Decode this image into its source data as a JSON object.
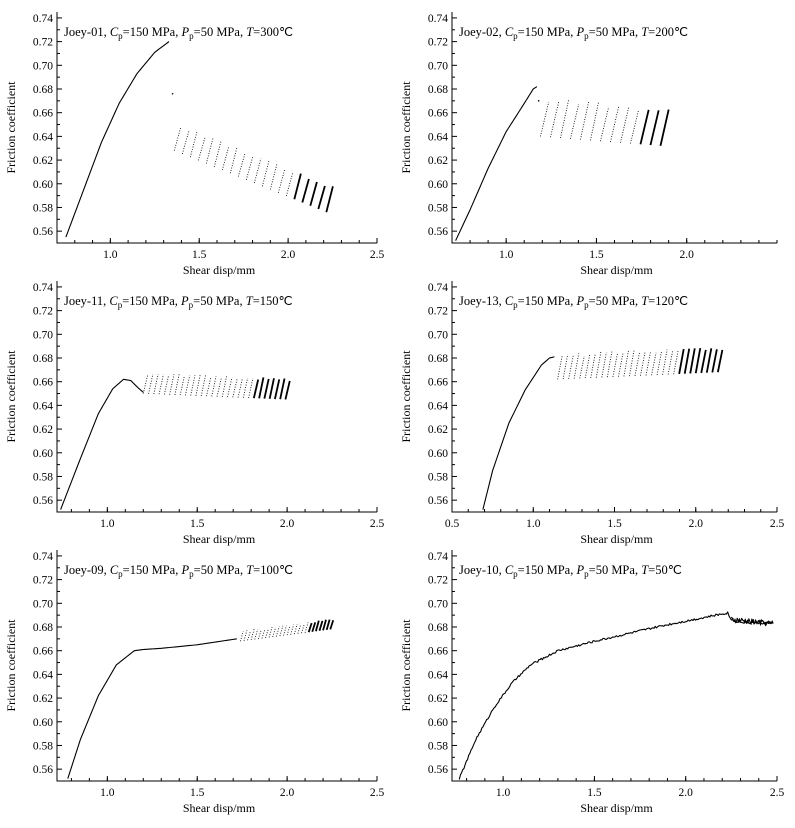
{
  "chart_data": [
    {
      "type": "scatter",
      "title": {
        "sample": "Joey-01",
        "cp": "150 MPa",
        "pp": "50 MPa",
        "temp": "300℃"
      },
      "xlabel": "Shear disp/mm",
      "ylabel": "Friction coefficient",
      "xlim": [
        0.7,
        2.5
      ],
      "ylim": [
        0.55,
        0.745
      ],
      "xticks": [
        "1.0",
        "1.5",
        "2.0",
        "2.5"
      ],
      "yticks": [
        "0.56",
        "0.58",
        "0.60",
        "0.62",
        "0.64",
        "0.66",
        "0.68",
        "0.70",
        "0.72",
        "0.74"
      ],
      "curve": [
        [
          0.75,
          0.555
        ],
        [
          0.85,
          0.595
        ],
        [
          0.95,
          0.635
        ],
        [
          1.05,
          0.668
        ],
        [
          1.15,
          0.693
        ],
        [
          1.25,
          0.711
        ],
        [
          1.33,
          0.72
        ]
      ],
      "stickslip": {
        "start": 1.36,
        "end": 2.26,
        "cycles": 20,
        "lowStart": 0.628,
        "lowEnd": 0.576,
        "amp": 0.022
      },
      "points": [
        [
          1.35,
          0.676
        ]
      ]
    },
    {
      "type": "scatter",
      "title": {
        "sample": "Joey-02",
        "cp": "150 MPa",
        "pp": "50 MPa",
        "temp": "200℃"
      },
      "xlabel": "Shear disp/mm",
      "ylabel": "Friction coefficient",
      "xlim": [
        0.7,
        2.5
      ],
      "ylim": [
        0.55,
        0.745
      ],
      "xticks": [
        "1.0",
        "1.5",
        "2.0"
      ],
      "yticks": [
        "0.56",
        "0.58",
        "0.60",
        "0.62",
        "0.64",
        "0.66",
        "0.68",
        "0.70",
        "0.72",
        "0.74"
      ],
      "curve": [
        [
          0.72,
          0.552
        ],
        [
          0.8,
          0.578
        ],
        [
          0.9,
          0.613
        ],
        [
          1.0,
          0.644
        ],
        [
          1.08,
          0.663
        ],
        [
          1.15,
          0.68
        ],
        [
          1.17,
          0.682
        ]
      ],
      "stickslip": {
        "start": 1.19,
        "end": 1.91,
        "cycles": 13,
        "lowStart": 0.64,
        "lowEnd": 0.632,
        "amp": 0.033
      },
      "points": [
        [
          1.18,
          0.67
        ]
      ]
    },
    {
      "type": "scatter",
      "title": {
        "sample": "Joey-11",
        "cp": "150 MPa",
        "pp": "50 MPa",
        "temp": "150℃"
      },
      "xlabel": "Shear disp/mm",
      "ylabel": "Friction coefficient",
      "xlim": [
        0.72,
        2.5
      ],
      "ylim": [
        0.55,
        0.745
      ],
      "xticks": [
        "1.0",
        "1.5",
        "2.0",
        "2.5"
      ],
      "yticks": [
        "0.56",
        "0.58",
        "0.60",
        "0.62",
        "0.64",
        "0.66",
        "0.68",
        "0.70",
        "0.72",
        "0.74"
      ],
      "curve": [
        [
          0.74,
          0.552
        ],
        [
          0.85,
          0.595
        ],
        [
          0.95,
          0.633
        ],
        [
          1.03,
          0.654
        ],
        [
          1.09,
          0.662
        ],
        [
          1.13,
          0.661
        ],
        [
          1.17,
          0.655
        ],
        [
          1.2,
          0.651
        ]
      ],
      "stickslip": {
        "start": 1.2,
        "end": 2.02,
        "cycles": 28,
        "lowStart": 0.65,
        "lowEnd": 0.645,
        "amp": 0.018
      },
      "points": []
    },
    {
      "type": "scatter",
      "title": {
        "sample": "Joey-13",
        "cp": "150 MPa",
        "pp": "50 MPa",
        "temp": "120℃"
      },
      "xlabel": "Shear disp/mm",
      "ylabel": "Friction coefficient",
      "xlim": [
        0.5,
        2.5
      ],
      "ylim": [
        0.55,
        0.745
      ],
      "xticks": [
        "0.5",
        "1.0",
        "1.5",
        "2.0",
        "2.5"
      ],
      "yticks": [
        "0.56",
        "0.58",
        "0.60",
        "0.62",
        "0.64",
        "0.66",
        "0.68",
        "0.70",
        "0.72",
        "0.74"
      ],
      "curve": [
        [
          0.69,
          0.552
        ],
        [
          0.75,
          0.585
        ],
        [
          0.85,
          0.625
        ],
        [
          0.95,
          0.653
        ],
        [
          1.05,
          0.674
        ],
        [
          1.1,
          0.68
        ],
        [
          1.13,
          0.681
        ]
      ],
      "stickslip": {
        "start": 1.15,
        "end": 2.17,
        "cycles": 30,
        "lowStart": 0.662,
        "lowEnd": 0.668,
        "amp": 0.022
      },
      "points": []
    },
    {
      "type": "scatter",
      "title": {
        "sample": "Joey-09",
        "cp": "150 MPa",
        "pp": "50 MPa",
        "temp": "100℃"
      },
      "xlabel": "Shear disp/mm",
      "ylabel": "Friction coefficient",
      "xlim": [
        0.72,
        2.5
      ],
      "ylim": [
        0.55,
        0.745
      ],
      "xticks": [
        "1.0",
        "1.5",
        "2.0",
        "2.5"
      ],
      "yticks": [
        "0.56",
        "0.58",
        "0.60",
        "0.62",
        "0.64",
        "0.66",
        "0.68",
        "0.70",
        "0.72",
        "0.74"
      ],
      "curve": [
        [
          0.78,
          0.552
        ],
        [
          0.85,
          0.585
        ],
        [
          0.95,
          0.622
        ],
        [
          1.05,
          0.648
        ],
        [
          1.15,
          0.66
        ],
        [
          1.2,
          0.661
        ],
        [
          1.3,
          0.662
        ],
        [
          1.5,
          0.665
        ],
        [
          1.72,
          0.67
        ]
      ],
      "stickslip": {
        "start": 1.74,
        "end": 2.26,
        "cycles": 26,
        "lowStart": 0.668,
        "lowEnd": 0.678,
        "amp": 0.009
      },
      "points": []
    },
    {
      "type": "line",
      "title": {
        "sample": "Joey-10",
        "cp": "150 MPa",
        "pp": "50 MPa",
        "temp": "50℃"
      },
      "xlabel": "Shear disp/mm",
      "ylabel": "Friction coefficient",
      "xlim": [
        0.72,
        2.5
      ],
      "ylim": [
        0.55,
        0.745
      ],
      "xticks": [
        "1.0",
        "1.5",
        "2.0",
        "2.5"
      ],
      "yticks": [
        "0.56",
        "0.58",
        "0.60",
        "0.62",
        "0.64",
        "0.66",
        "0.68",
        "0.70",
        "0.72",
        "0.74"
      ],
      "curve": [
        [
          0.76,
          0.552
        ],
        [
          0.85,
          0.585
        ],
        [
          0.95,
          0.612
        ],
        [
          1.05,
          0.633
        ],
        [
          1.15,
          0.648
        ],
        [
          1.3,
          0.66
        ],
        [
          1.5,
          0.668
        ],
        [
          1.7,
          0.675
        ],
        [
          1.9,
          0.682
        ],
        [
          2.1,
          0.688
        ],
        [
          2.23,
          0.692
        ],
        [
          2.25,
          0.686
        ],
        [
          2.3,
          0.684
        ],
        [
          2.48,
          0.683
        ]
      ],
      "stickslip": null,
      "points": []
    }
  ]
}
